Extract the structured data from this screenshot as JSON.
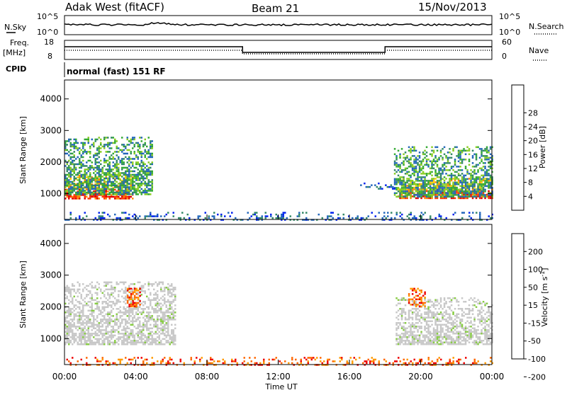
{
  "header": {
    "station": "Adak West (fitACF)",
    "beam": "Beam 21",
    "date": "15/Nov/2013"
  },
  "status_panel": {
    "nsky_label": "N.Sky",
    "nsearch_label": "N.Search",
    "count_ticks": [
      "10^5",
      "10^0"
    ],
    "freq_label": "Freq.",
    "freq_unit": "[MHz]",
    "freq_ticks": [
      "18",
      "8"
    ],
    "nave_label": "Nave",
    "nave_ticks": [
      "60",
      "0"
    ],
    "cpid_label": "CPID",
    "cpid_text": "normal (fast) 151 RF"
  },
  "time_axis": {
    "label": "Time UT",
    "ticks": [
      "00:00",
      "04:00",
      "08:00",
      "12:00",
      "16:00",
      "20:00",
      "00:00"
    ]
  },
  "chart_data": [
    {
      "type": "heatmap",
      "name": "power",
      "ylabel": "Slant Range [km]",
      "xlim": [
        0,
        24
      ],
      "ylim": [
        180,
        4600
      ],
      "yticks": [
        "1000",
        "2000",
        "3000",
        "4000"
      ],
      "colorbar": {
        "label": "Power [dB]",
        "ticks": [
          "4",
          "8",
          "12",
          "16",
          "20",
          "24",
          "28"
        ],
        "range": [
          0,
          30
        ],
        "colors": [
          "#0022ee",
          "#2266bb",
          "#338866",
          "#33aa33",
          "#88cc22",
          "#ffcc00",
          "#ff8800",
          "#ff3300",
          "#dd0000"
        ]
      },
      "regions": [
        {
          "t0": 0.0,
          "t1": 3.8,
          "r0": 850,
          "r1": 1600,
          "level": "high"
        },
        {
          "t0": 0.0,
          "t1": 4.9,
          "r0": 1000,
          "r1": 2800,
          "level": "mid"
        },
        {
          "t0": 18.7,
          "t1": 24.0,
          "r0": 850,
          "r1": 1500,
          "level": "high"
        },
        {
          "t0": 18.5,
          "t1": 24.0,
          "r0": 900,
          "r1": 2500,
          "level": "mid"
        },
        {
          "t0": 16.5,
          "t1": 18.5,
          "r0": 1150,
          "r1": 1350,
          "level": "low"
        },
        {
          "t0": 0.0,
          "t1": 24.0,
          "r0": 180,
          "r1": 420,
          "level": "low"
        }
      ]
    },
    {
      "type": "heatmap",
      "name": "velocity",
      "ylabel": "Slant Range [km]",
      "xlim": [
        0,
        24
      ],
      "ylim": [
        180,
        4600
      ],
      "yticks": [
        "1000",
        "2000",
        "3000",
        "4000"
      ],
      "colorbar": {
        "label": "Velocity [m s^-1]",
        "ticks": [
          "200",
          "100",
          "50",
          "15",
          "-15",
          "-50",
          "-100",
          "-200"
        ],
        "range": [
          -250,
          250
        ],
        "colors": [
          "#2244aa",
          "#338866",
          "#88cc44",
          "#c8c8c8",
          "#ff9900",
          "#ff6600",
          "#ee0000"
        ]
      },
      "regions": [
        {
          "t0": 0.0,
          "t1": 6.2,
          "r0": 800,
          "r1": 2800,
          "level": "gray"
        },
        {
          "t0": 18.6,
          "t1": 24.0,
          "r0": 800,
          "r1": 2300,
          "level": "gray"
        },
        {
          "t0": 3.5,
          "t1": 4.2,
          "r0": 2000,
          "r1": 2600,
          "level": "orange"
        },
        {
          "t0": 19.3,
          "t1": 20.2,
          "r0": 2000,
          "r1": 2600,
          "level": "orange"
        },
        {
          "t0": 0.0,
          "t1": 24.0,
          "r0": 180,
          "r1": 420,
          "level": "orange"
        }
      ]
    }
  ]
}
